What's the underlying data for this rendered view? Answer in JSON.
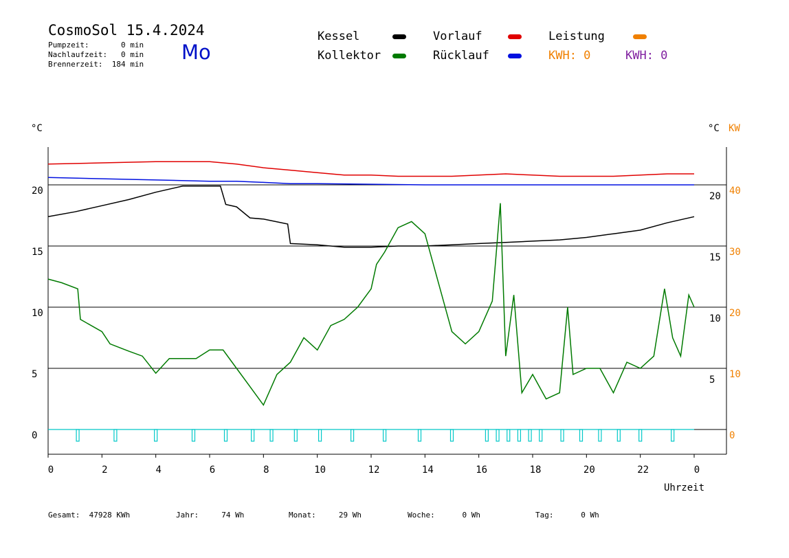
{
  "header": {
    "title": "CosmoSol 15.4.2024",
    "weekday": "Mo",
    "pump": "Pumpzeit:       0 min",
    "nachlauf": "Nachlaufzeit:   0 min",
    "brenner": "Brennerzeit:  184 min"
  },
  "legend": {
    "kessel": "Kessel",
    "kollektor": "Kollektor",
    "vorlauf": "Vorlauf",
    "ruecklauf": "Rücklauf",
    "leistung": "Leistung",
    "kwh1": "KWH: 0",
    "kwh2": "KWH: 0"
  },
  "colors": {
    "kessel": "#000000",
    "kollektor": "#007a00",
    "vorlauf": "#e00000",
    "ruecklauf": "#0010e0",
    "leistung": "#f08000",
    "kwh2": "#8020a0",
    "pump": "#00c8c8",
    "weekday": "#0010c8"
  },
  "axes": {
    "left_unit": "°C",
    "right_unit": "°C",
    "right_unit2": "KW",
    "xlabel": "Uhrzeit"
  },
  "footer": {
    "gesamt": "Gesamt:  47928 KWh",
    "jahr": "Jahr:     74 Wh",
    "monat": "Monat:     29 Wh",
    "woche": "Woche:      0 Wh",
    "tag": "Tag:      0 Wh"
  },
  "chart_data": {
    "type": "line",
    "x_ticks": [
      "0",
      "2",
      "4",
      "6",
      "8",
      "10",
      "12",
      "14",
      "16",
      "18",
      "20",
      "22",
      "0"
    ],
    "y_left_ticks": [
      "20",
      "15",
      "10",
      "5",
      "0"
    ],
    "y_right_ticks": [
      "20",
      "15",
      "10",
      "5"
    ],
    "y_right2_ticks": [
      "40",
      "30",
      "20",
      "10",
      "0"
    ],
    "xlim": [
      0,
      24
    ],
    "ylim": [
      -2,
      23.5
    ],
    "series": [
      {
        "name": "Vorlauf",
        "color_key": "vorlauf",
        "x": [
          0,
          2,
          4,
          6,
          7,
          8,
          9,
          10,
          11,
          12,
          13,
          14,
          15,
          16,
          17,
          18,
          19,
          20,
          21,
          22,
          23,
          24
        ],
        "y": [
          21.7,
          21.8,
          21.9,
          21.9,
          21.7,
          21.4,
          21.2,
          21.0,
          20.8,
          20.8,
          20.7,
          20.7,
          20.7,
          20.8,
          20.9,
          20.8,
          20.7,
          20.7,
          20.7,
          20.8,
          20.9,
          20.9
        ]
      },
      {
        "name": "Rücklauf",
        "color_key": "ruecklauf",
        "x": [
          0,
          2,
          4,
          6,
          7,
          8,
          9,
          10,
          12,
          14,
          16,
          18,
          20,
          22,
          24
        ],
        "y": [
          20.6,
          20.5,
          20.4,
          20.3,
          20.3,
          20.2,
          20.1,
          20.1,
          20.05,
          20.0,
          20.0,
          20.0,
          20.0,
          20.0,
          20.0
        ]
      },
      {
        "name": "Kessel",
        "color_key": "kessel",
        "x": [
          0,
          1,
          2,
          3,
          4,
          5,
          6,
          6.4,
          6.6,
          7,
          7.5,
          8,
          8.9,
          9,
          10,
          11,
          12,
          13,
          14,
          15,
          16,
          17,
          18,
          19,
          20,
          21,
          22,
          23,
          24
        ],
        "y": [
          17.4,
          17.8,
          18.3,
          18.8,
          19.4,
          19.9,
          19.9,
          19.9,
          18.4,
          18.2,
          17.3,
          17.2,
          16.8,
          15.2,
          15.1,
          14.9,
          14.9,
          15.0,
          15.0,
          15.1,
          15.2,
          15.3,
          15.4,
          15.5,
          15.7,
          16.0,
          16.3,
          16.9,
          17.4
        ]
      },
      {
        "name": "Kollektor",
        "color_key": "kollektor",
        "x": [
          0,
          0.5,
          1.1,
          1.2,
          2,
          2.3,
          3,
          3.5,
          4,
          4.5,
          5,
          5.5,
          6,
          6.5,
          7,
          7.5,
          8,
          8.5,
          9,
          9.5,
          10,
          10.5,
          11,
          11.5,
          12,
          12.2,
          12.5,
          13,
          13.5,
          14,
          14.5,
          15,
          15.5,
          16,
          16.5,
          16.8,
          17,
          17.3,
          17.6,
          18,
          18.5,
          19,
          19.3,
          19.5,
          20,
          20.5,
          21,
          21.5,
          22,
          22.5,
          22.9,
          23.2,
          23.5,
          23.8,
          24
        ],
        "y": [
          12.3,
          12.0,
          11.5,
          9.0,
          8.0,
          7.0,
          6.4,
          6.0,
          4.6,
          5.8,
          5.8,
          5.8,
          6.5,
          6.5,
          5.0,
          3.5,
          2.0,
          4.5,
          5.5,
          7.5,
          6.5,
          8.5,
          9.0,
          10.0,
          11.5,
          13.5,
          14.5,
          16.5,
          17.0,
          16.0,
          12.0,
          8.0,
          7.0,
          8.0,
          10.5,
          18.5,
          6.0,
          11.0,
          3.0,
          4.5,
          2.5,
          3.0,
          10.0,
          4.5,
          5.0,
          5.0,
          3.0,
          5.5,
          5.0,
          6.0,
          11.5,
          7.5,
          6.0,
          11.0,
          10.0
        ]
      }
    ],
    "pump_markers_hours": [
      1.1,
      2.5,
      4.0,
      5.4,
      6.6,
      7.6,
      8.3,
      9.2,
      10.1,
      11.3,
      12.5,
      13.8,
      15.0,
      16.3,
      16.7,
      17.1,
      17.5,
      17.9,
      18.3,
      19.1,
      19.8,
      20.5,
      21.2,
      22.0,
      23.2
    ]
  }
}
